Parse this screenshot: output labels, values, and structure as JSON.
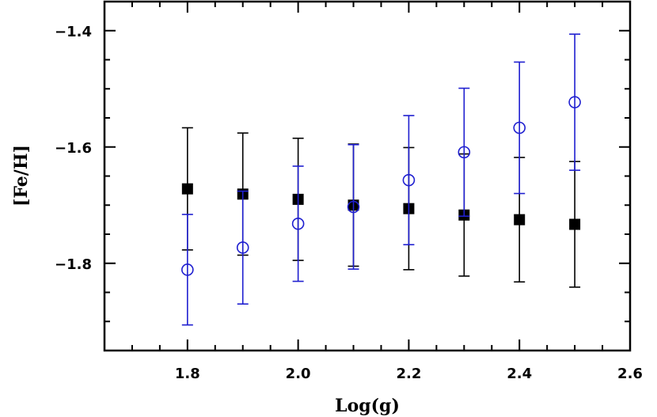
{
  "chart_data": {
    "type": "scatter",
    "title": "",
    "xlabel": "Log(g)",
    "ylabel": "[Fe/H]",
    "xlim": [
      1.65,
      2.6
    ],
    "ylim": [
      -1.95,
      -1.35
    ],
    "x_ticks": [
      1.8,
      2.0,
      2.2,
      2.4,
      2.6
    ],
    "x_tick_labels": [
      "1.8",
      "2.0",
      "2.2",
      "2.4",
      "2.6"
    ],
    "y_ticks": [
      -1.8,
      -1.6,
      -1.4
    ],
    "y_tick_labels": [
      "−1.8",
      "−1.6",
      "−1.4"
    ],
    "x_minor_step": 0.05,
    "y_minor_step": 0.05,
    "grid": false,
    "legend": "none",
    "series": [
      {
        "marker": "filled-square",
        "color": "#000000",
        "points": [
          {
            "x": 1.8,
            "y": -1.672,
            "err": 0.105
          },
          {
            "x": 1.9,
            "y": -1.681,
            "err": 0.105
          },
          {
            "x": 2.0,
            "y": -1.69,
            "err": 0.105
          },
          {
            "x": 2.1,
            "y": -1.7,
            "err": 0.105
          },
          {
            "x": 2.2,
            "y": -1.706,
            "err": 0.105
          },
          {
            "x": 2.3,
            "y": -1.717,
            "err": 0.105
          },
          {
            "x": 2.4,
            "y": -1.725,
            "err": 0.107
          },
          {
            "x": 2.5,
            "y": -1.733,
            "err": 0.108
          }
        ]
      },
      {
        "marker": "open-circle",
        "color": "#1f1fd0",
        "points": [
          {
            "x": 1.8,
            "y": -1.811,
            "err": 0.095
          },
          {
            "x": 1.9,
            "y": -1.773,
            "err": 0.097
          },
          {
            "x": 2.0,
            "y": -1.732,
            "err": 0.099
          },
          {
            "x": 2.1,
            "y": -1.703,
            "err": 0.107
          },
          {
            "x": 2.2,
            "y": -1.657,
            "err": 0.111
          },
          {
            "x": 2.3,
            "y": -1.609,
            "err": 0.11
          },
          {
            "x": 2.4,
            "y": -1.567,
            "err": 0.113
          },
          {
            "x": 2.5,
            "y": -1.523,
            "err": 0.117
          }
        ]
      }
    ]
  }
}
